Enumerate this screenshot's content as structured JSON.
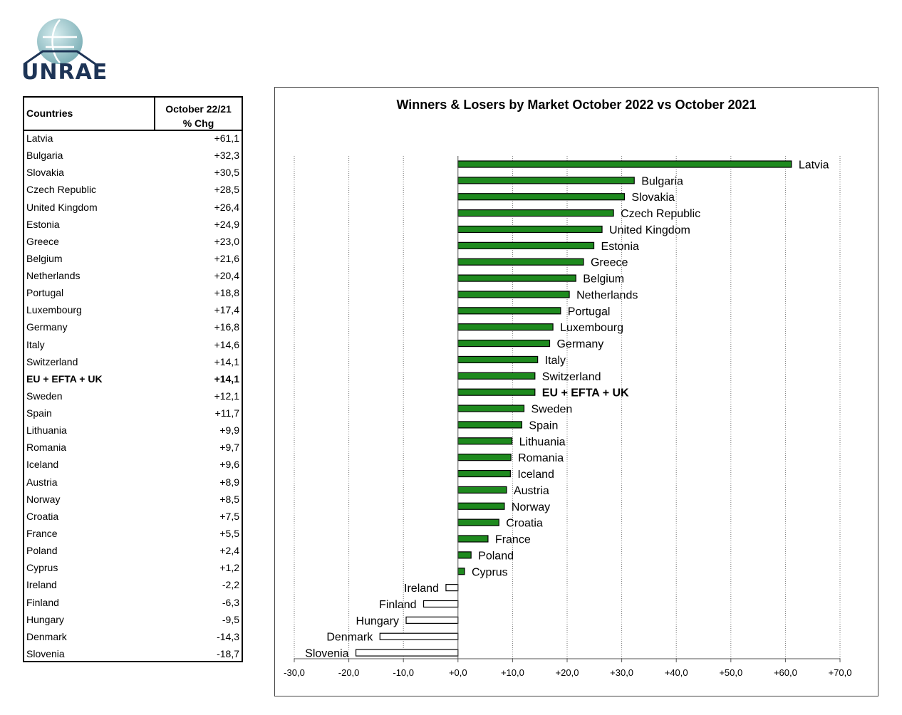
{
  "logo": {
    "text": "UNRAE",
    "colors": {
      "globe": "#9cc3c8",
      "text": "#1d3456"
    }
  },
  "table": {
    "header": {
      "country": "Countries",
      "value_line1": "October 22/21",
      "value_line2": "% Chg"
    },
    "rows": [
      {
        "country": "Latvia",
        "value": "+61,1"
      },
      {
        "country": "Bulgaria",
        "value": "+32,3"
      },
      {
        "country": "Slovakia",
        "value": "+30,5"
      },
      {
        "country": "Czech Republic",
        "value": "+28,5"
      },
      {
        "country": "United Kingdom",
        "value": "+26,4"
      },
      {
        "country": "Estonia",
        "value": "+24,9"
      },
      {
        "country": "Greece",
        "value": "+23,0"
      },
      {
        "country": "Belgium",
        "value": "+21,6"
      },
      {
        "country": "Netherlands",
        "value": "+20,4"
      },
      {
        "country": "Portugal",
        "value": "+18,8"
      },
      {
        "country": "Luxembourg",
        "value": "+17,4"
      },
      {
        "country": "Germany",
        "value": "+16,8"
      },
      {
        "country": "Italy",
        "value": "+14,6"
      },
      {
        "country": "Switzerland",
        "value": "+14,1"
      },
      {
        "country": "EU + EFTA + UK",
        "value": "+14,1",
        "bold": true
      },
      {
        "country": "Sweden",
        "value": "+12,1"
      },
      {
        "country": "Spain",
        "value": "+11,7"
      },
      {
        "country": "Lithuania",
        "value": "+9,9"
      },
      {
        "country": "Romania",
        "value": "+9,7"
      },
      {
        "country": "Iceland",
        "value": "+9,6"
      },
      {
        "country": "Austria",
        "value": "+8,9"
      },
      {
        "country": "Norway",
        "value": "+8,5"
      },
      {
        "country": "Croatia",
        "value": "+7,5"
      },
      {
        "country": "France",
        "value": "+5,5"
      },
      {
        "country": "Poland",
        "value": "+2,4"
      },
      {
        "country": "Cyprus",
        "value": "+1,2"
      },
      {
        "country": "Ireland",
        "value": "-2,2"
      },
      {
        "country": "Finland",
        "value": "-6,3"
      },
      {
        "country": "Hungary",
        "value": "-9,5"
      },
      {
        "country": "Denmark",
        "value": "-14,3"
      },
      {
        "country": "Slovenia",
        "value": "-18,7"
      }
    ]
  },
  "chart_data": {
    "type": "bar",
    "orientation": "horizontal",
    "title": "Winners & Losers by Market October 2022 vs October 2021",
    "categories": [
      "Latvia",
      "Bulgaria",
      "Slovakia",
      "Czech Republic",
      "United Kingdom",
      "Estonia",
      "Greece",
      "Belgium",
      "Netherlands",
      "Portugal",
      "Luxembourg",
      "Germany",
      "Italy",
      "Switzerland",
      "EU + EFTA + UK",
      "Sweden",
      "Spain",
      "Lithuania",
      "Romania",
      "Iceland",
      "Austria",
      "Norway",
      "Croatia",
      "France",
      "Poland",
      "Cyprus",
      "Ireland",
      "Finland",
      "Hungary",
      "Denmark",
      "Slovenia"
    ],
    "values": [
      61.1,
      32.3,
      30.5,
      28.5,
      26.4,
      24.9,
      23.0,
      21.6,
      20.4,
      18.8,
      17.4,
      16.8,
      14.6,
      14.1,
      14.1,
      12.1,
      11.7,
      9.9,
      9.7,
      9.6,
      8.9,
      8.5,
      7.5,
      5.5,
      2.4,
      1.2,
      -2.2,
      -6.3,
      -9.5,
      -14.3,
      -18.7
    ],
    "bold_categories": [
      "EU + EFTA + UK"
    ],
    "xlim": [
      -30,
      70
    ],
    "xticks": [
      -30,
      -20,
      -10,
      0,
      10,
      20,
      30,
      40,
      50,
      60,
      70
    ],
    "xtick_labels": [
      "-30,0",
      "-20,0",
      "-10,0",
      "+0,0",
      "+10,0",
      "+20,0",
      "+30,0",
      "+40,0",
      "+50,0",
      "+60,0",
      "+70,0"
    ],
    "grid": "vertical dotted",
    "legend": "none",
    "colors": {
      "positive": "#1e8a1e",
      "negative": "#ffffff",
      "outline": "#000000"
    }
  }
}
